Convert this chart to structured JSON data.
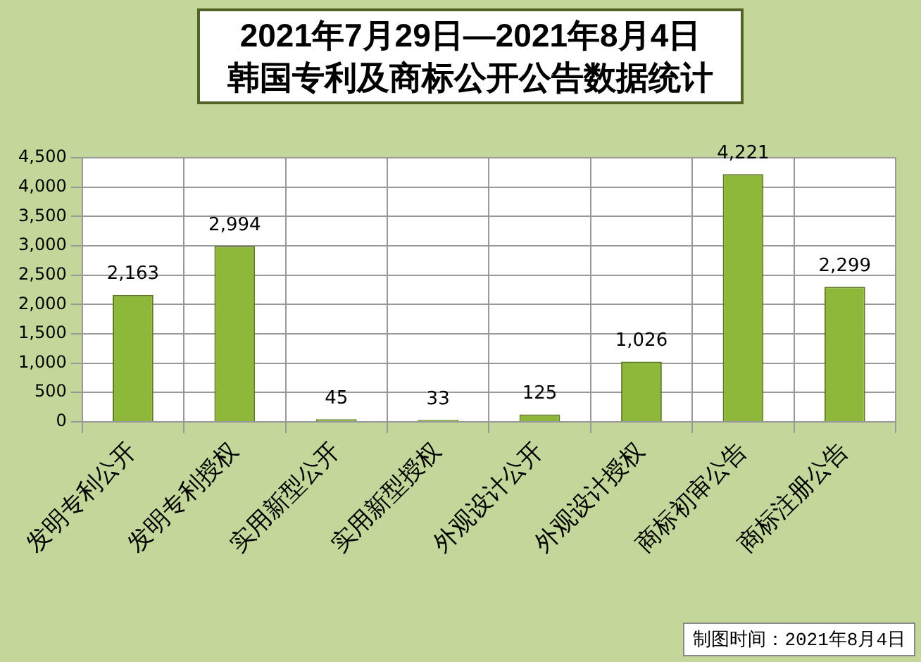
{
  "chart_data": {
    "type": "bar",
    "title": "2021年7月29日—2021年8月4日",
    "subtitle": "韩国专利及商标公开公告数据统计",
    "categories": [
      "发明专利公开",
      "发明专利授权",
      "实用新型公开",
      "实用新型授权",
      "外观设计公开",
      "外观设计授权",
      "商标初审公告",
      "商标注册公告"
    ],
    "values": [
      2163,
      2994,
      45,
      33,
      125,
      1026,
      4221,
      2299
    ],
    "color": "#8db83a",
    "ylim": [
      0,
      4500
    ],
    "yticks": [
      {
        "value": 0,
        "label": "0"
      },
      {
        "value": 500,
        "label": "500"
      },
      {
        "value": 1000,
        "label": "1,000"
      },
      {
        "value": 1500,
        "label": "1,500"
      },
      {
        "value": 2000,
        "label": "2,000"
      },
      {
        "value": 2500,
        "label": "2,500"
      },
      {
        "value": 3000,
        "label": "3,000"
      },
      {
        "value": 3500,
        "label": "3,500"
      },
      {
        "value": 4000,
        "label": "4,000"
      },
      {
        "value": 4500,
        "label": "4,500"
      }
    ],
    "grid": true,
    "legend": false,
    "value_labels": [
      "2,163",
      "2,994",
      "45",
      "33",
      "125",
      "1,026",
      "4,221",
      "2,299"
    ],
    "annotations": [
      "制图时间：2021年8月4日"
    ]
  }
}
